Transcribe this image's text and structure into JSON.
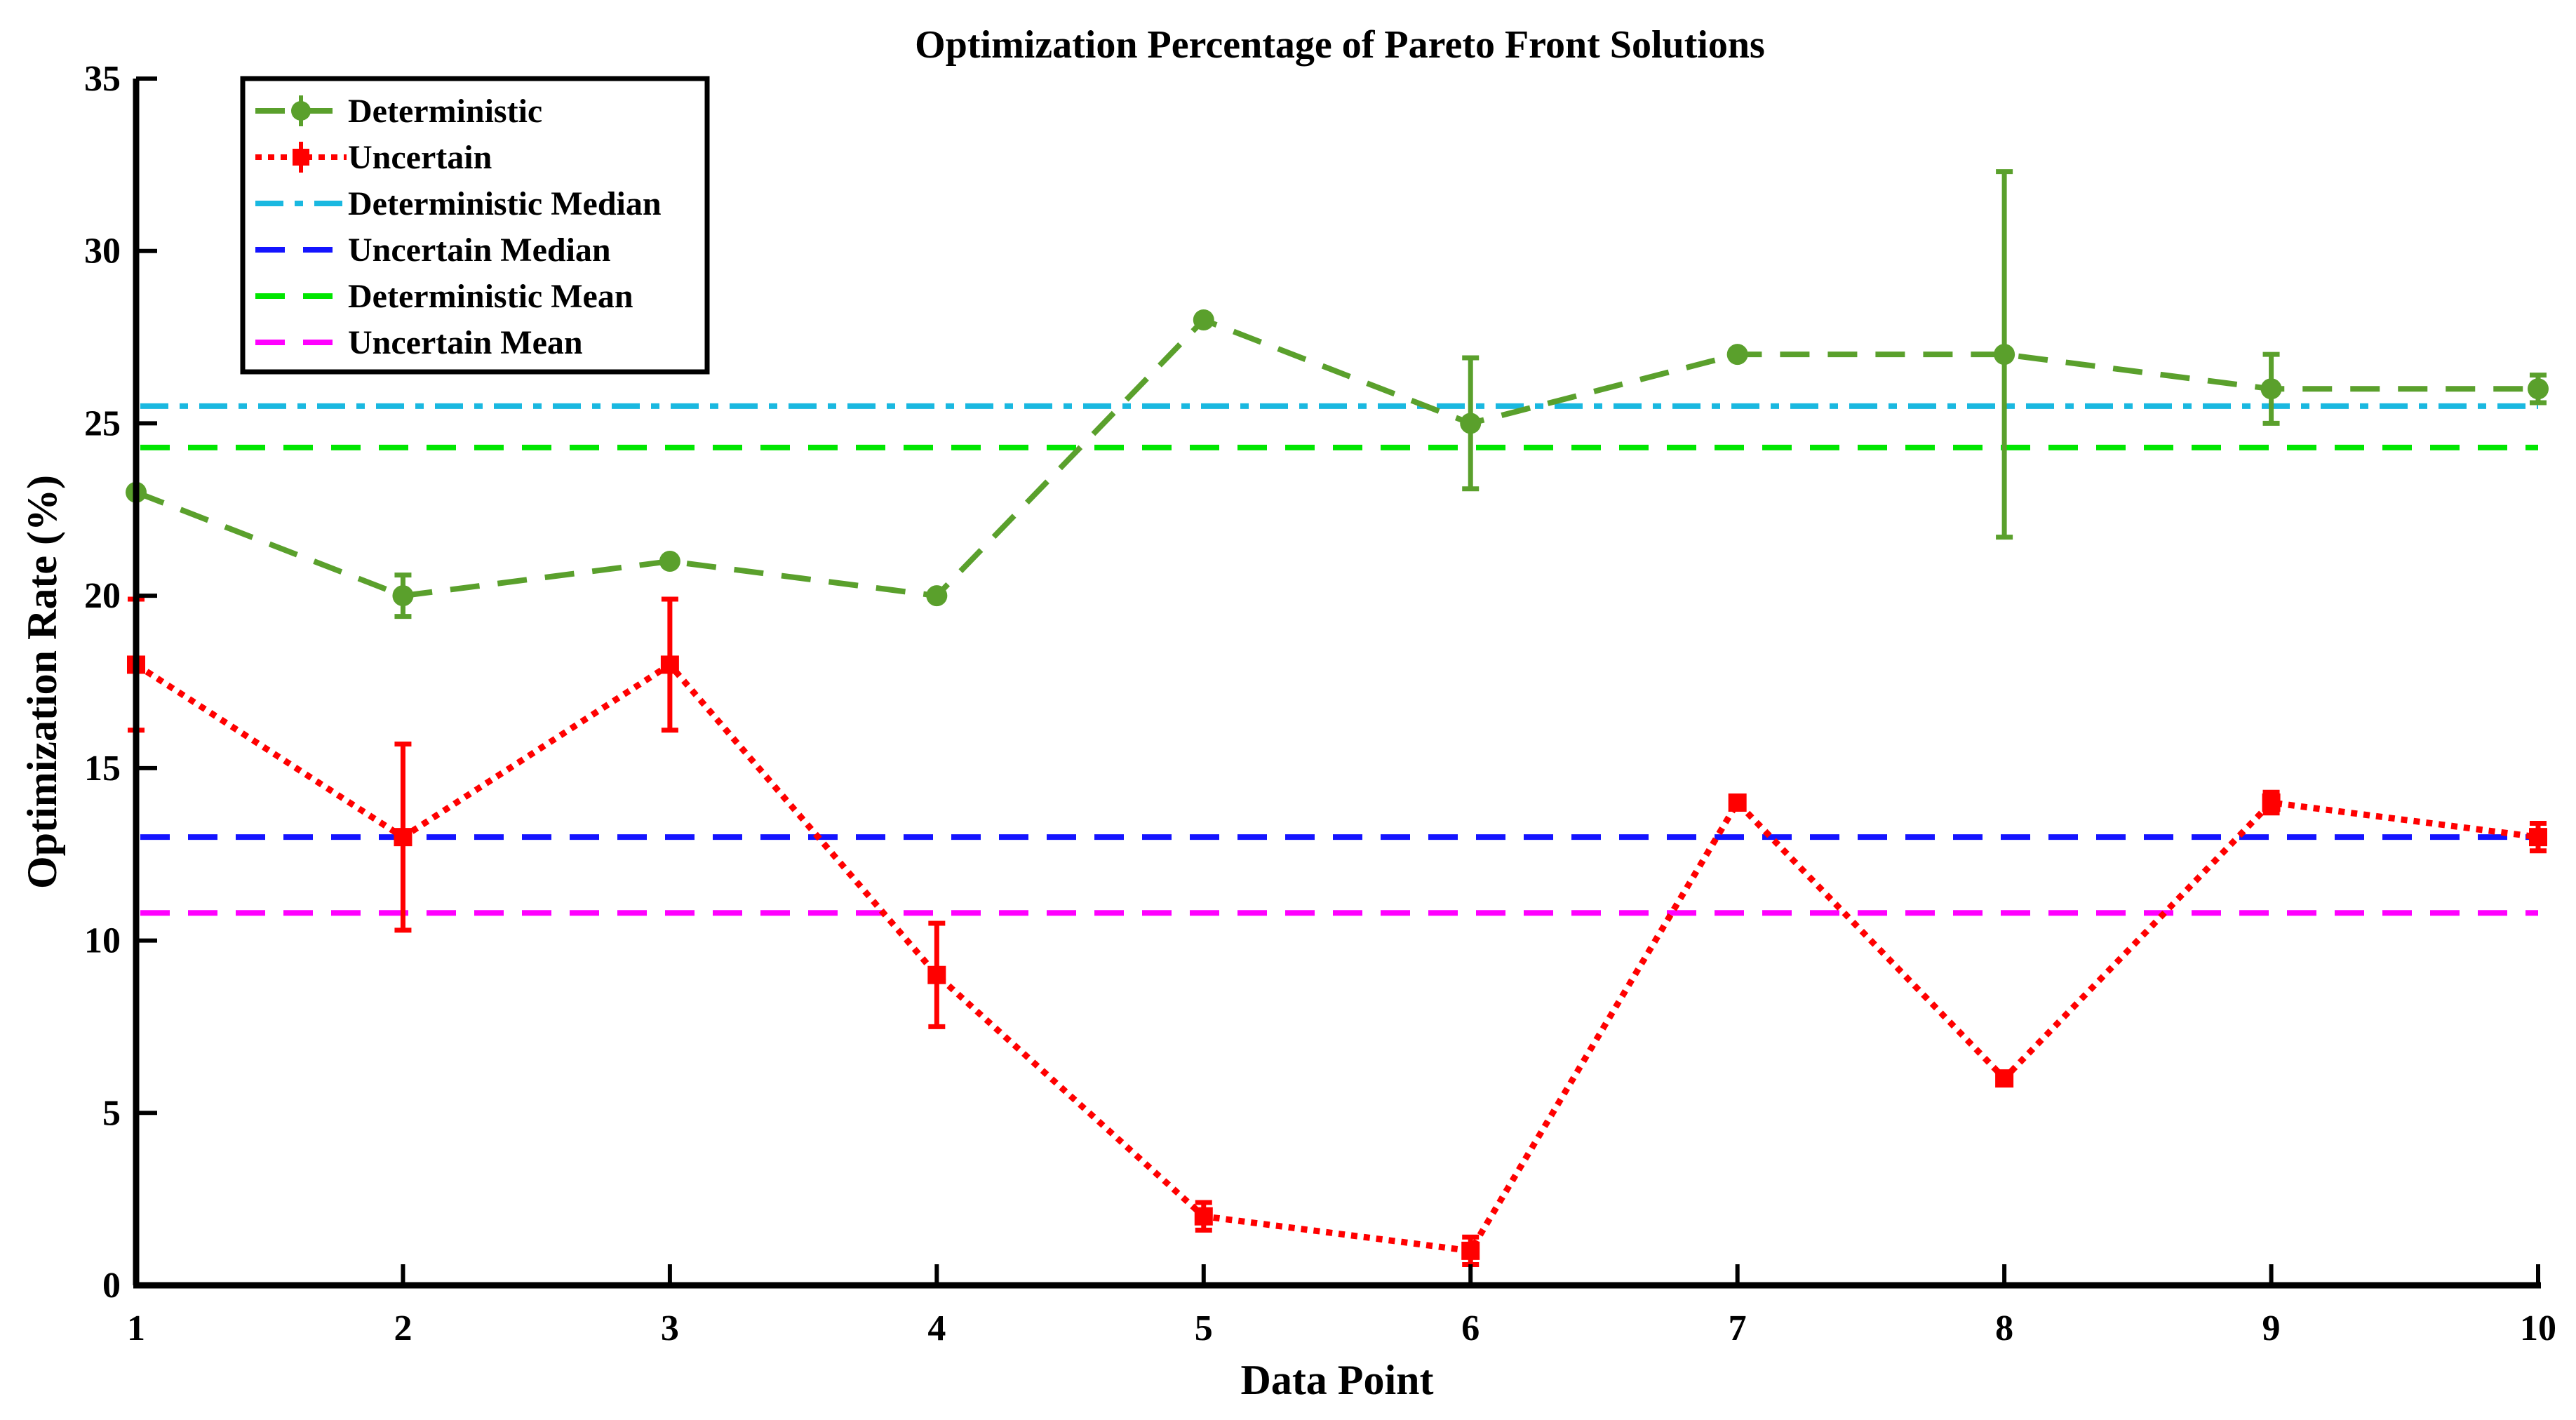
{
  "chart_data": {
    "type": "line",
    "title": "Optimization Percentage of Pareto Front Solutions",
    "xlabel": "Data Point",
    "ylabel": "Optimization Rate (%)",
    "xlim": [
      1,
      10
    ],
    "ylim": [
      0,
      35
    ],
    "xticks": [
      "1",
      "2",
      "3",
      "4",
      "5",
      "6",
      "7",
      "8",
      "9",
      "10"
    ],
    "yticks": [
      "0",
      "5",
      "10",
      "15",
      "20",
      "25",
      "30",
      "35"
    ],
    "x": [
      1,
      2,
      3,
      4,
      5,
      6,
      7,
      8,
      9,
      10
    ],
    "legend_position": "top-left",
    "series": [
      {
        "name": "Deterministic",
        "color": "#5aa02c",
        "line_style": "dashed",
        "marker": "circle",
        "values": [
          23,
          20,
          21,
          20,
          28,
          25,
          27,
          27,
          26,
          26
        ],
        "errors": [
          0,
          0.6,
          0,
          0,
          0,
          1.9,
          0,
          5.3,
          1.0,
          0.4
        ]
      },
      {
        "name": "Uncertain",
        "color": "#ff0000",
        "line_style": "dotted",
        "marker": "square",
        "values": [
          18,
          13,
          18,
          9,
          2,
          1,
          14,
          6,
          14,
          13
        ],
        "errors": [
          1.9,
          2.7,
          1.9,
          1.5,
          0.4,
          0.4,
          0,
          0,
          0.3,
          0.4
        ]
      }
    ],
    "reference_lines": [
      {
        "name": "Deterministic Median",
        "value": 25.5,
        "color": "#1ab8e0",
        "line_style": "dashdot"
      },
      {
        "name": "Uncertain Median",
        "value": 13,
        "color": "#1414ff",
        "line_style": "dashed"
      },
      {
        "name": "Deterministic Mean",
        "value": 24.3,
        "color": "#00e600",
        "line_style": "dashed"
      },
      {
        "name": "Uncertain Mean",
        "value": 10.8,
        "color": "#ff00ff",
        "line_style": "dashed"
      }
    ]
  }
}
